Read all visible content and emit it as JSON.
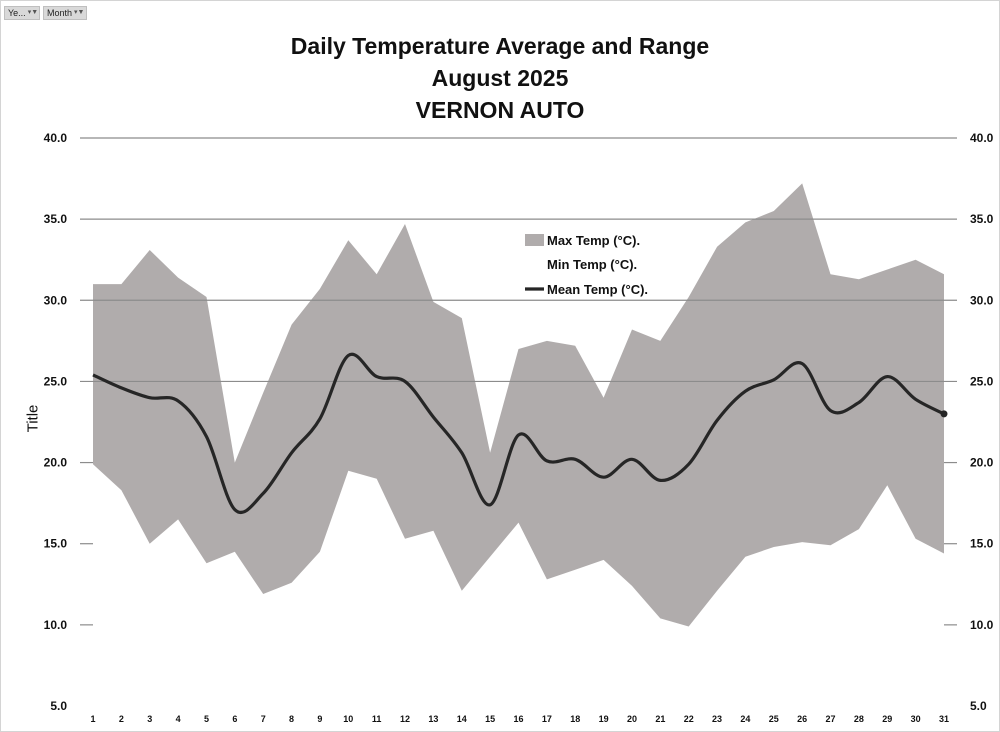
{
  "filters": [
    {
      "label": "Ye...",
      "icon": "filter-dropdown-icon"
    },
    {
      "label": "Month",
      "icon": "filter-dropdown-icon"
    }
  ],
  "chart_data": {
    "type": "area",
    "title_lines": [
      "Daily Temperature Average and Range",
      "August 2025",
      "VERNON AUTO"
    ],
    "xlabel": "",
    "ylabel": "Title",
    "ylim": [
      5,
      40
    ],
    "yticks": [
      "5.0",
      "10.0",
      "15.0",
      "20.0",
      "25.0",
      "30.0",
      "35.0",
      "40.0"
    ],
    "categories": [
      "1",
      "2",
      "3",
      "4",
      "5",
      "6",
      "7",
      "8",
      "9",
      "10",
      "11",
      "12",
      "13",
      "14",
      "15",
      "16",
      "17",
      "18",
      "19",
      "20",
      "21",
      "22",
      "23",
      "24",
      "25",
      "26",
      "27",
      "28",
      "29",
      "30",
      "31"
    ],
    "series": [
      {
        "name": "Max Temp (°C).",
        "values": [
          31.0,
          31.0,
          33.1,
          31.4,
          30.2,
          20.0,
          24.3,
          28.5,
          30.7,
          33.7,
          31.6,
          34.7,
          29.9,
          28.9,
          20.6,
          27.0,
          27.5,
          27.2,
          24.0,
          28.2,
          27.5,
          30.2,
          33.3,
          34.8,
          35.5,
          37.2,
          31.6,
          31.3,
          31.9,
          32.5,
          31.6
        ]
      },
      {
        "name": "Min Temp (°C).",
        "values": [
          19.9,
          18.3,
          15.0,
          16.5,
          13.8,
          14.5,
          11.9,
          12.6,
          14.5,
          19.5,
          19.0,
          15.3,
          15.8,
          12.1,
          14.2,
          16.3,
          12.8,
          13.4,
          14.0,
          12.4,
          10.4,
          9.9,
          12.1,
          14.2,
          14.8,
          15.1,
          14.9,
          15.9,
          18.6,
          15.3,
          14.4
        ]
      },
      {
        "name": "Mean Temp (°C).",
        "values": [
          25.4,
          24.6,
          24.0,
          23.8,
          21.6,
          17.1,
          18.1,
          20.6,
          22.7,
          26.6,
          25.3,
          25.0,
          22.8,
          20.6,
          17.4,
          21.7,
          20.1,
          20.2,
          19.1,
          20.2,
          18.9,
          19.9,
          22.6,
          24.4,
          25.1,
          26.1,
          23.2,
          23.7,
          25.3,
          23.9,
          23.0
        ]
      }
    ],
    "legend_position": "top-center",
    "grid": true,
    "colors": {
      "range_fill": "#b0acac",
      "mean_line": "#262626",
      "grid": "#8c8c8c"
    }
  }
}
